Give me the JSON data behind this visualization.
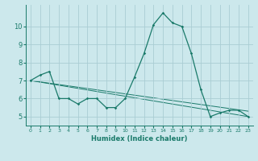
{
  "xlabel": "Humidex (Indice chaleur)",
  "background_color": "#cce8ec",
  "grid_color": "#aacdd4",
  "line_color": "#1a7a6a",
  "xlim": [
    -0.5,
    23.5
  ],
  "ylim": [
    4.5,
    11.2
  ],
  "yticks": [
    5,
    6,
    7,
    8,
    9,
    10
  ],
  "xticks": [
    0,
    1,
    2,
    3,
    4,
    5,
    6,
    7,
    8,
    9,
    10,
    11,
    12,
    13,
    14,
    15,
    16,
    17,
    18,
    19,
    20,
    21,
    22,
    23
  ],
  "series1_x": [
    0,
    1,
    2,
    3,
    4,
    5,
    6,
    7,
    8,
    9,
    10,
    11,
    12,
    13,
    14,
    15,
    16,
    17,
    18,
    19,
    20,
    21,
    22,
    23
  ],
  "series1_y": [
    7.0,
    7.3,
    7.5,
    6.0,
    6.0,
    5.7,
    6.0,
    6.0,
    5.5,
    5.5,
    6.0,
    7.2,
    8.5,
    10.1,
    10.75,
    10.2,
    10.0,
    8.5,
    6.5,
    5.0,
    5.2,
    5.35,
    5.35,
    5.0
  ],
  "series2_x": [
    0,
    23
  ],
  "series2_y": [
    7.0,
    5.0
  ],
  "series3_x": [
    0,
    23
  ],
  "series3_y": [
    7.0,
    5.3
  ]
}
